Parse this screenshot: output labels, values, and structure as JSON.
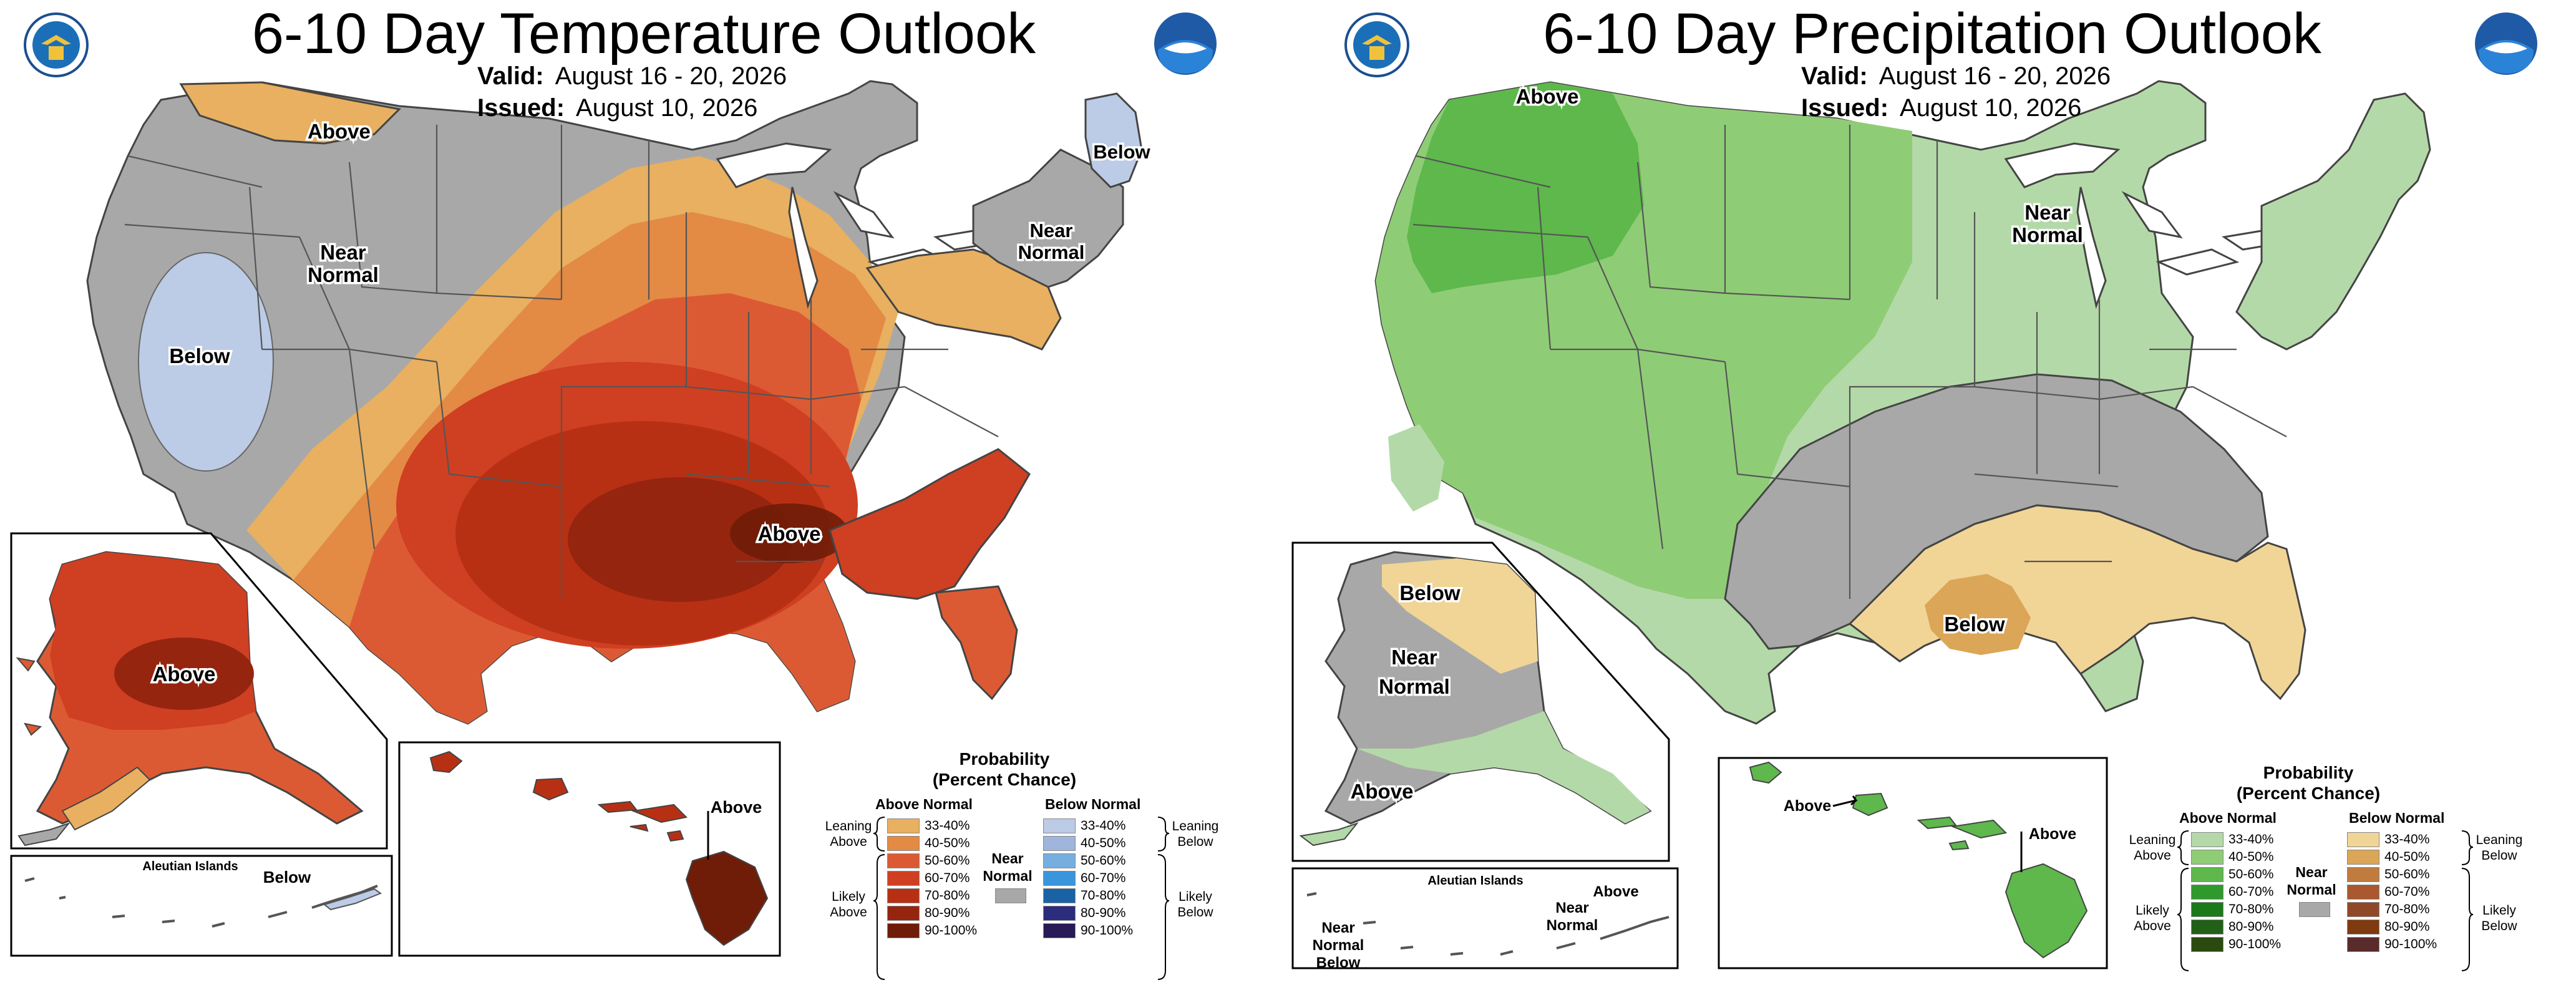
{
  "temperature": {
    "title": "6-10 Day Temperature Outlook",
    "valid_label": "Valid:",
    "valid_value": "August 16 - 20, 2026",
    "issued_label": "Issued:",
    "issued_value": "August 10, 2026",
    "map_labels": {
      "above_north": "Above",
      "near_normal_w_1": "Near",
      "near_normal_w_2": "Normal",
      "below_west": "Below",
      "below_ne": "Below",
      "near_normal_ne_1": "Near",
      "near_normal_ne_2": "Normal",
      "above_south": "Above",
      "alaska_above": "Above",
      "aleutian_title": "Aleutian Islands",
      "aleutian_below": "Below",
      "hawaii_above": "Above"
    },
    "legend": {
      "title_1": "Probability",
      "title_2": "(Percent Chance)",
      "above_head": "Above Normal",
      "below_head": "Below Normal",
      "near_1": "Near",
      "near_2": "Normal",
      "leaning_above_1": "Leaning",
      "leaning_above_2": "Above",
      "likely_above_1": "Likely",
      "likely_above_2": "Above",
      "leaning_below_1": "Leaning",
      "leaning_below_2": "Below",
      "likely_below_1": "Likely",
      "likely_below_2": "Below",
      "ranges": [
        "33-40%",
        "40-50%",
        "50-60%",
        "60-70%",
        "70-80%",
        "80-90%",
        "90-100%"
      ],
      "above_colors": [
        "#e8b060",
        "#e38a45",
        "#dc5a33",
        "#cf3f22",
        "#b83014",
        "#962510",
        "#6f1d08"
      ],
      "below_colors": [
        "#bccbe6",
        "#9fb5db",
        "#77aee0",
        "#3a96dc",
        "#1a62a5",
        "#2b2c7c",
        "#271a56"
      ],
      "near_color": "#a8a8a8"
    }
  },
  "precipitation": {
    "title": "6-10 Day Precipitation Outlook",
    "valid_label": "Valid:",
    "valid_value": "August 16 - 20, 2026",
    "issued_label": "Issued:",
    "issued_value": "August 10, 2026",
    "map_labels": {
      "above_nw": "Above",
      "near_normal_c_1": "Near",
      "near_normal_c_2": "Normal",
      "below_south": "Below",
      "alaska_below": "Below",
      "alaska_near_1": "Near",
      "alaska_near_2": "Normal",
      "alaska_above": "Above",
      "aleutian_title": "Aleutian Islands",
      "aleutian_above": "Above",
      "aleutian_near_1": "Near",
      "aleutian_near_2": "Normal",
      "aleutian_near_w_1": "Near",
      "aleutian_near_w_2": "Normal",
      "aleutian_below": "Below",
      "hawaii_above_w": "Above",
      "hawaii_above_e": "Above"
    },
    "legend": {
      "title_1": "Probability",
      "title_2": "(Percent Chance)",
      "above_head": "Above Normal",
      "below_head": "Below Normal",
      "near_1": "Near",
      "near_2": "Normal",
      "leaning_above_1": "Leaning",
      "leaning_above_2": "Above",
      "likely_above_1": "Likely",
      "likely_above_2": "Above",
      "leaning_below_1": "Leaning",
      "leaning_below_2": "Below",
      "likely_below_1": "Likely",
      "likely_below_2": "Below",
      "ranges": [
        "33-40%",
        "40-50%",
        "50-60%",
        "60-70%",
        "70-80%",
        "80-90%",
        "90-100%"
      ],
      "above_colors": [
        "#b4d9a8",
        "#8fcc76",
        "#5eb84c",
        "#2e9a2c",
        "#1a7a1a",
        "#226018",
        "#2b4a10"
      ],
      "below_colors": [
        "#f1d597",
        "#dba657",
        "#c07c3e",
        "#a9582f",
        "#8f4828",
        "#7f3a10",
        "#5a2b2b"
      ],
      "near_color": "#a8a8a8"
    }
  }
}
